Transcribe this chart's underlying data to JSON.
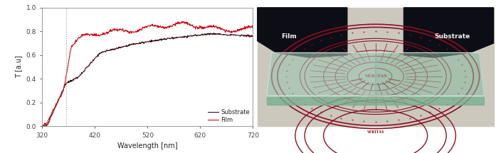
{
  "xlim": [
    320,
    720
  ],
  "ylim": [
    0,
    1.0
  ],
  "xticks": [
    320,
    420,
    520,
    620,
    720
  ],
  "yticks": [
    0,
    0.2,
    0.4,
    0.6,
    0.8,
    1.0
  ],
  "xlabel": "Wavelength [nm]",
  "ylabel": "T [a.u]",
  "dotted_line_x": 365,
  "substrate_color": "#3d0008",
  "film_color": "#cc0010",
  "legend_labels": [
    "Substrate",
    "Film"
  ],
  "photo_labels": [
    "Film",
    "Substrate"
  ],
  "background_color": "#ffffff",
  "paper_color": "#d8d4cc",
  "stamp_color": "#8b1025",
  "glass_color_left": "#a8c8b8",
  "glass_color_right": "#b8d4c0",
  "dark_corner_color": "#0a0a12"
}
